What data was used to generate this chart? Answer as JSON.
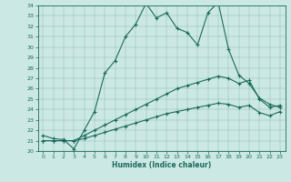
{
  "xlabel": "Humidex (Indice chaleur)",
  "xlim": [
    -0.5,
    23.5
  ],
  "ylim": [
    20,
    34
  ],
  "yticks": [
    20,
    21,
    22,
    23,
    24,
    25,
    26,
    27,
    28,
    29,
    30,
    31,
    32,
    33,
    34
  ],
  "xticks": [
    0,
    1,
    2,
    3,
    4,
    5,
    6,
    7,
    8,
    9,
    10,
    11,
    12,
    13,
    14,
    15,
    16,
    17,
    18,
    19,
    20,
    21,
    22,
    23
  ],
  "bg_color": "#cce8e4",
  "line_color": "#1a6b5a",
  "line1": {
    "x": [
      0,
      1,
      2,
      3,
      4,
      5,
      6,
      7,
      8,
      9,
      10,
      11,
      12,
      13,
      14,
      15,
      16,
      17,
      18,
      19,
      20,
      21,
      22,
      23
    ],
    "y": [
      21.5,
      21.2,
      21.1,
      20.2,
      22.0,
      23.8,
      27.5,
      28.7,
      31.0,
      32.2,
      34.2,
      32.8,
      33.3,
      31.8,
      31.4,
      30.2,
      33.3,
      34.3,
      29.8,
      27.3,
      26.5,
      25.1,
      24.5,
      24.2
    ]
  },
  "line2": {
    "x": [
      0,
      1,
      2,
      3,
      4,
      5,
      6,
      7,
      8,
      9,
      10,
      11,
      12,
      13,
      14,
      15,
      16,
      17,
      18,
      19,
      20,
      21,
      22,
      23
    ],
    "y": [
      21.0,
      21.0,
      21.0,
      21.0,
      21.5,
      22.0,
      22.5,
      23.0,
      23.5,
      24.0,
      24.5,
      25.0,
      25.5,
      26.0,
      26.3,
      26.6,
      26.9,
      27.2,
      27.0,
      26.5,
      26.8,
      25.0,
      24.2,
      24.4
    ]
  },
  "line3": {
    "x": [
      0,
      1,
      2,
      3,
      4,
      5,
      6,
      7,
      8,
      9,
      10,
      11,
      12,
      13,
      14,
      15,
      16,
      17,
      18,
      19,
      20,
      21,
      22,
      23
    ],
    "y": [
      21.0,
      21.0,
      21.0,
      21.0,
      21.2,
      21.5,
      21.8,
      22.1,
      22.4,
      22.7,
      23.0,
      23.3,
      23.6,
      23.8,
      24.0,
      24.2,
      24.4,
      24.6,
      24.5,
      24.2,
      24.4,
      23.7,
      23.4,
      23.8
    ]
  }
}
